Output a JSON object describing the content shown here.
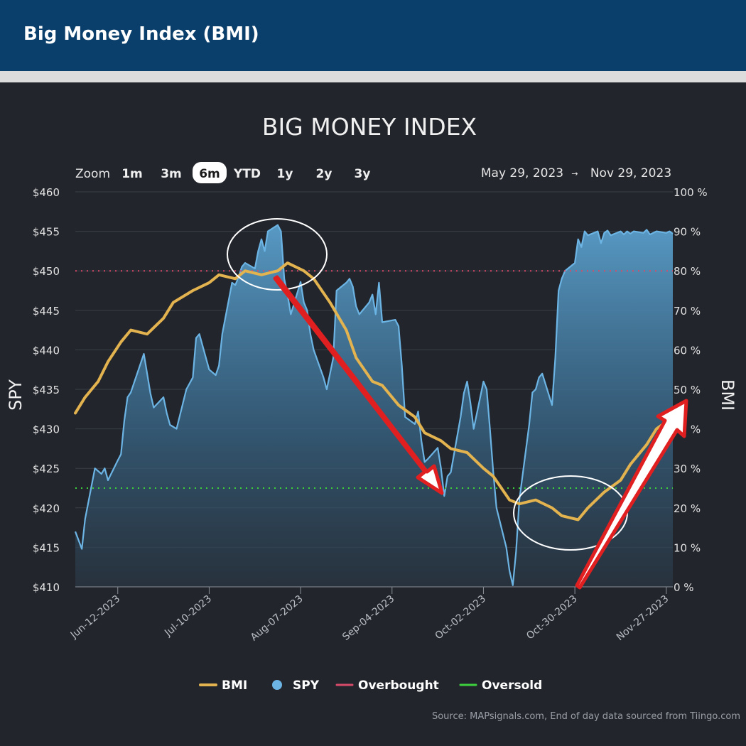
{
  "header": {
    "title": "Big Money Index (BMI)"
  },
  "toolbar": {
    "zoom_label": "Zoom",
    "zoom_buttons": [
      "1m",
      "3m",
      "6m",
      "YTD",
      "1y",
      "2y",
      "3y"
    ],
    "zoom_selected": "6m",
    "range_start": "May 29, 2023",
    "range_arrow": "→",
    "range_end": "Nov 29, 2023"
  },
  "source": "Source: MAPsignals.com, End of day data sourced from Tiingo.com",
  "colors": {
    "header_bg": "#0b3f6b",
    "panel_bg": "#22252c",
    "bmi": "#e3b34f",
    "spy": "#6cb4e4",
    "overbought": "#d84a6a",
    "oversold": "#3ed13e",
    "arrow": "#e02020"
  },
  "chart_data": {
    "type": "area",
    "title": "BIG MONEY INDEX",
    "ylabel": "SPY",
    "y2label": "BMI",
    "ylim": [
      410,
      460
    ],
    "y2lim": [
      0,
      100
    ],
    "y_ticks": [
      "$460",
      "$455",
      "$450",
      "$445",
      "$440",
      "$435",
      "$430",
      "$425",
      "$420",
      "$415",
      "$410"
    ],
    "y2_ticks": [
      "100 %",
      "90 %",
      "80 %",
      "70 %",
      "60 %",
      "50 %",
      "40 %",
      "30 %",
      "20 %",
      "10 %",
      "0 %"
    ],
    "x_ticks": [
      "Jun-12-2023",
      "Jul-10-2023",
      "Aug-07-2023",
      "Sep-04-2023",
      "Oct-02-2023",
      "Oct-30-2023",
      "Nov-27-2023"
    ],
    "x_start": "2023-05-30",
    "x_end": "2023-11-29",
    "legend": [
      "BMI",
      "SPY",
      "Overbought",
      "Oversold"
    ],
    "legend_position": "bottom",
    "overbought_level": 80,
    "oversold_level": 25,
    "series": [
      {
        "name": "SPY",
        "axis": "left",
        "dates": [
          "2023-05-30",
          "2023-06-01",
          "2023-06-02",
          "2023-06-05",
          "2023-06-07",
          "2023-06-08",
          "2023-06-09",
          "2023-06-12",
          "2023-06-13",
          "2023-06-14",
          "2023-06-15",
          "2023-06-16",
          "2023-06-20",
          "2023-06-21",
          "2023-06-22",
          "2023-06-23",
          "2023-06-26",
          "2023-06-27",
          "2023-06-28",
          "2023-06-30",
          "2023-07-03",
          "2023-07-05",
          "2023-07-06",
          "2023-07-07",
          "2023-07-10",
          "2023-07-12",
          "2023-07-13",
          "2023-07-14",
          "2023-07-17",
          "2023-07-18",
          "2023-07-19",
          "2023-07-20",
          "2023-07-21",
          "2023-07-24",
          "2023-07-25",
          "2023-07-26",
          "2023-07-27",
          "2023-07-28",
          "2023-07-31",
          "2023-08-01",
          "2023-08-02",
          "2023-08-03",
          "2023-08-04",
          "2023-08-07",
          "2023-08-08",
          "2023-08-09",
          "2023-08-10",
          "2023-08-11",
          "2023-08-14",
          "2023-08-15",
          "2023-08-16",
          "2023-08-17",
          "2023-08-18",
          "2023-08-21",
          "2023-08-22",
          "2023-08-23",
          "2023-08-24",
          "2023-08-25",
          "2023-08-28",
          "2023-08-29",
          "2023-08-30",
          "2023-08-31",
          "2023-09-01",
          "2023-09-05",
          "2023-09-06",
          "2023-09-07",
          "2023-09-08",
          "2023-09-11",
          "2023-09-12",
          "2023-09-13",
          "2023-09-14",
          "2023-09-15",
          "2023-09-18",
          "2023-09-19",
          "2023-09-20",
          "2023-09-21",
          "2023-09-22",
          "2023-09-25",
          "2023-09-26",
          "2023-09-27",
          "2023-09-28",
          "2023-09-29",
          "2023-10-02",
          "2023-10-03",
          "2023-10-04",
          "2023-10-05",
          "2023-10-06",
          "2023-10-09",
          "2023-10-10",
          "2023-10-11",
          "2023-10-12",
          "2023-10-13",
          "2023-10-16",
          "2023-10-17",
          "2023-10-18",
          "2023-10-19",
          "2023-10-20",
          "2023-10-23",
          "2023-10-24",
          "2023-10-25",
          "2023-10-26",
          "2023-10-27",
          "2023-10-30",
          "2023-10-31",
          "2023-11-01",
          "2023-11-02",
          "2023-11-03",
          "2023-11-06",
          "2023-11-07",
          "2023-11-08",
          "2023-11-09",
          "2023-11-10",
          "2023-11-13",
          "2023-11-14",
          "2023-11-15",
          "2023-11-16",
          "2023-11-17",
          "2023-11-20",
          "2023-11-21",
          "2023-11-22",
          "2023-11-24",
          "2023-11-27",
          "2023-11-28",
          "2023-11-29"
        ],
        "values": [
          417.0,
          414.8,
          418.6,
          425.0,
          424.3,
          425.0,
          423.5,
          426.0,
          426.8,
          431.0,
          434.0,
          434.6,
          439.5,
          437.0,
          434.5,
          432.7,
          434.0,
          432.0,
          430.5,
          430.0,
          435.0,
          436.5,
          441.5,
          442.0,
          437.5,
          436.8,
          438.0,
          442.0,
          448.5,
          448.2,
          449.2,
          450.5,
          451.0,
          450.3,
          452.5,
          454.0,
          452.5,
          455.0,
          455.8,
          455.0,
          449.0,
          447.0,
          444.5,
          448.6,
          446.0,
          445.0,
          442.0,
          440.0,
          436.5,
          435.0,
          437.0,
          439.0,
          447.5,
          448.5,
          449.0,
          448.0,
          445.5,
          444.5,
          446.0,
          447.0,
          444.5,
          448.5,
          443.5,
          443.8,
          443.0,
          438.0,
          431.5,
          430.6,
          432.2,
          428.5,
          425.8,
          426.2,
          427.6,
          425.0,
          421.5,
          424.0,
          424.5,
          431.5,
          434.5,
          436.0,
          433.3,
          430.0,
          436.0,
          435.0,
          430.0,
          424.6,
          420.0,
          415.0,
          412.0,
          410.2,
          414.5,
          421.0,
          430.5,
          434.6,
          435.0,
          436.5,
          437.0,
          433.0,
          439.0,
          447.5,
          449.0,
          450.0,
          451.0,
          454.0,
          453.0,
          455.0,
          454.5,
          455.0,
          453.5,
          454.8,
          455.1,
          454.5,
          455.0,
          454.6,
          455.0,
          454.7,
          455.0,
          454.8,
          455.2,
          454.6,
          455.0,
          454.8,
          455.0,
          454.7
        ]
      },
      {
        "name": "BMI",
        "axis": "right",
        "dates": [
          "2023-05-30",
          "2023-06-02",
          "2023-06-06",
          "2023-06-09",
          "2023-06-13",
          "2023-06-16",
          "2023-06-21",
          "2023-06-26",
          "2023-06-29",
          "2023-07-05",
          "2023-07-10",
          "2023-07-13",
          "2023-07-18",
          "2023-07-21",
          "2023-07-26",
          "2023-07-31",
          "2023-08-03",
          "2023-08-08",
          "2023-08-11",
          "2023-08-16",
          "2023-08-21",
          "2023-08-24",
          "2023-08-29",
          "2023-09-01",
          "2023-09-06",
          "2023-09-11",
          "2023-09-14",
          "2023-09-19",
          "2023-09-22",
          "2023-09-27",
          "2023-10-02",
          "2023-10-05",
          "2023-10-10",
          "2023-10-13",
          "2023-10-18",
          "2023-10-23",
          "2023-10-26",
          "2023-10-31",
          "2023-11-03",
          "2023-11-08",
          "2023-11-13",
          "2023-11-16",
          "2023-11-21",
          "2023-11-24",
          "2023-11-29"
        ],
        "values": [
          44,
          48,
          52,
          57,
          62,
          65,
          64,
          68,
          72,
          75,
          77,
          79,
          78,
          80,
          79,
          80,
          82,
          80,
          78,
          72,
          65,
          58,
          52,
          51,
          46,
          43,
          39,
          37,
          35,
          34,
          30,
          28,
          22,
          21,
          22,
          20,
          18,
          17,
          20,
          24,
          27,
          31,
          36,
          40,
          43
        ]
      }
    ]
  }
}
